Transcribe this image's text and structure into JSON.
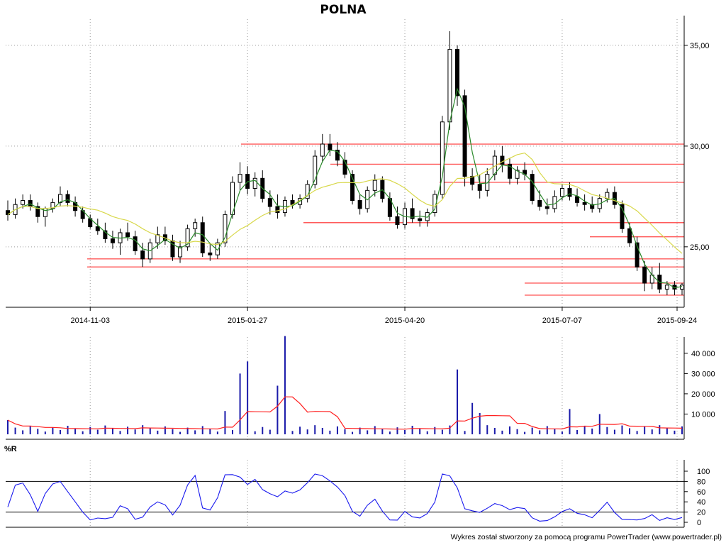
{
  "chart_data": [
    {
      "type": "candlestick",
      "panel": "price",
      "title": "POLNA",
      "x_tick_labels": [
        "2014-11-03",
        "2015-01-27",
        "2015-04-20",
        "2015-07-07",
        "2015-09-24"
      ],
      "y_tick_labels": [
        "25,00",
        "30,00",
        "35,00"
      ],
      "ylim": [
        22.0,
        36.3
      ],
      "grid": true,
      "ohlc_approx": [
        [
          26.8,
          27.3,
          26.3,
          26.6
        ],
        [
          26.6,
          27.4,
          26.4,
          27.1
        ],
        [
          27.1,
          27.6,
          26.9,
          27.3
        ],
        [
          27.3,
          27.6,
          26.8,
          27.0
        ],
        [
          27.0,
          27.2,
          26.2,
          26.5
        ],
        [
          26.5,
          27.0,
          26.0,
          26.9
        ],
        [
          26.9,
          27.4,
          26.7,
          27.2
        ],
        [
          27.2,
          28.0,
          27.0,
          27.6
        ],
        [
          27.6,
          27.8,
          27.0,
          27.2
        ],
        [
          27.2,
          27.5,
          26.5,
          26.8
        ],
        [
          26.8,
          27.0,
          26.2,
          26.4
        ],
        [
          26.4,
          26.6,
          25.9,
          26.0
        ],
        [
          26.0,
          26.4,
          25.6,
          25.8
        ],
        [
          25.8,
          26.2,
          25.2,
          25.4
        ],
        [
          25.4,
          25.8,
          24.9,
          25.2
        ],
        [
          25.2,
          25.9,
          24.6,
          25.7
        ],
        [
          25.7,
          26.2,
          25.3,
          25.5
        ],
        [
          25.5,
          25.8,
          24.6,
          24.8
        ],
        [
          24.8,
          25.2,
          24.0,
          24.4
        ],
        [
          24.4,
          25.4,
          24.2,
          25.2
        ],
        [
          25.2,
          26.0,
          24.9,
          25.6
        ],
        [
          25.6,
          26.0,
          25.1,
          25.3
        ],
        [
          25.3,
          25.6,
          24.3,
          24.5
        ],
        [
          24.5,
          25.3,
          24.2,
          25.0
        ],
        [
          25.0,
          26.1,
          24.8,
          25.9
        ],
        [
          25.9,
          26.4,
          25.5,
          26.2
        ],
        [
          26.2,
          26.5,
          24.5,
          24.7
        ],
        [
          24.7,
          25.2,
          24.3,
          24.6
        ],
        [
          24.6,
          25.4,
          24.4,
          25.2
        ],
        [
          25.2,
          26.8,
          25.0,
          26.6
        ],
        [
          26.6,
          28.5,
          26.4,
          28.2
        ],
        [
          28.2,
          29.2,
          27.8,
          28.6
        ],
        [
          28.6,
          29.0,
          27.6,
          27.9
        ],
        [
          27.9,
          28.7,
          27.5,
          28.4
        ],
        [
          28.4,
          28.8,
          27.2,
          27.4
        ],
        [
          27.4,
          27.8,
          26.6,
          27.0
        ],
        [
          27.0,
          27.6,
          26.4,
          26.7
        ],
        [
          26.7,
          27.5,
          26.5,
          27.3
        ],
        [
          27.3,
          27.6,
          26.9,
          27.1
        ],
        [
          27.1,
          27.6,
          26.9,
          27.4
        ],
        [
          27.4,
          28.3,
          27.2,
          28.1
        ],
        [
          28.1,
          29.8,
          27.9,
          29.5
        ],
        [
          29.5,
          30.6,
          29.2,
          30.1
        ],
        [
          30.1,
          30.6,
          29.5,
          29.8
        ],
        [
          29.8,
          30.2,
          29.0,
          29.3
        ],
        [
          29.3,
          29.7,
          28.4,
          28.6
        ],
        [
          28.6,
          28.8,
          27.1,
          27.3
        ],
        [
          27.3,
          27.6,
          26.6,
          26.9
        ],
        [
          26.9,
          28.0,
          26.7,
          27.8
        ],
        [
          27.8,
          28.6,
          27.5,
          28.3
        ],
        [
          28.3,
          28.5,
          27.2,
          27.4
        ],
        [
          27.4,
          27.7,
          26.3,
          26.5
        ],
        [
          26.5,
          27.0,
          25.9,
          26.1
        ],
        [
          26.1,
          27.2,
          25.9,
          26.9
        ],
        [
          26.9,
          27.4,
          26.2,
          26.4
        ],
        [
          26.4,
          26.8,
          26.0,
          26.3
        ],
        [
          26.3,
          26.9,
          26.0,
          26.7
        ],
        [
          26.7,
          27.8,
          26.5,
          27.6
        ],
        [
          27.6,
          31.5,
          27.4,
          31.2
        ],
        [
          31.2,
          35.7,
          30.8,
          34.8
        ],
        [
          34.8,
          35.0,
          32.0,
          32.5
        ],
        [
          32.5,
          32.8,
          28.0,
          28.5
        ],
        [
          28.5,
          28.9,
          27.8,
          28.1
        ],
        [
          28.1,
          28.6,
          27.4,
          27.8
        ],
        [
          27.8,
          28.9,
          27.5,
          28.6
        ],
        [
          28.6,
          29.8,
          28.3,
          29.5
        ],
        [
          29.5,
          30.0,
          28.7,
          29.1
        ],
        [
          29.1,
          29.4,
          28.1,
          28.4
        ],
        [
          28.4,
          29.0,
          28.1,
          28.8
        ],
        [
          28.8,
          29.2,
          28.3,
          28.6
        ],
        [
          28.6,
          28.8,
          27.1,
          27.3
        ],
        [
          27.3,
          27.8,
          26.8,
          27.0
        ],
        [
          27.0,
          27.4,
          26.6,
          26.9
        ],
        [
          26.9,
          27.8,
          26.7,
          27.5
        ],
        [
          27.5,
          28.1,
          27.3,
          27.9
        ],
        [
          27.9,
          28.2,
          27.3,
          27.5
        ],
        [
          27.5,
          27.9,
          27.0,
          27.2
        ],
        [
          27.2,
          27.6,
          26.8,
          27.1
        ],
        [
          27.1,
          27.5,
          26.7,
          26.9
        ],
        [
          26.9,
          27.6,
          26.7,
          27.4
        ],
        [
          27.4,
          27.9,
          27.2,
          27.7
        ],
        [
          27.7,
          28.0,
          26.9,
          27.1
        ],
        [
          27.1,
          27.3,
          25.7,
          25.9
        ],
        [
          25.9,
          26.2,
          25.0,
          25.2
        ],
        [
          25.2,
          25.5,
          23.8,
          24.0
        ],
        [
          24.0,
          24.3,
          22.8,
          23.2
        ],
        [
          23.2,
          24.0,
          22.9,
          23.6
        ],
        [
          23.6,
          24.2,
          22.7,
          22.9
        ],
        [
          22.9,
          23.3,
          22.6,
          23.1
        ],
        [
          23.1,
          23.3,
          22.6,
          22.9
        ],
        [
          22.9,
          23.2,
          22.6,
          23.1
        ]
      ],
      "moving_averages": [
        {
          "color": "#2a8a2a",
          "label": "short MA"
        },
        {
          "color": "#d8d84a",
          "label": "long MA"
        }
      ],
      "horizontal_levels_approx": [
        30.1,
        29.1,
        28.2,
        26.2,
        25.5,
        24.4,
        24.0,
        23.2,
        22.6
      ],
      "level_color": "#ff5a5a"
    },
    {
      "type": "bar",
      "panel": "volume",
      "y_tick_labels": [
        "10 000",
        "20 000",
        "30 000",
        "40 000"
      ],
      "ylim": [
        0,
        48000
      ],
      "bar_color": "#1a1aaa",
      "line_color": "#ff2020",
      "spikes_approx": [
        {
          "idx": 0,
          "value": 7000
        },
        {
          "idx": 29,
          "value": 11500
        },
        {
          "idx": 31,
          "value": 30000
        },
        {
          "idx": 32,
          "value": 36000
        },
        {
          "idx": 36,
          "value": 24000
        },
        {
          "idx": 37,
          "value": 48500
        },
        {
          "idx": 60,
          "value": 32000
        },
        {
          "idx": 62,
          "value": 15500
        },
        {
          "idx": 63,
          "value": 10500
        },
        {
          "idx": 75,
          "value": 12500
        },
        {
          "idx": 79,
          "value": 10000
        }
      ]
    },
    {
      "type": "line",
      "panel": "oscillator",
      "title": "%R",
      "y_tick_labels": [
        "0",
        "20",
        "40",
        "60",
        "80",
        "100"
      ],
      "ylim": [
        0,
        100
      ],
      "reference_lines": [
        20,
        80
      ],
      "line_color": "#1a1aee"
    }
  ],
  "footer": {
    "credit": "Wykres został stworzony za pomocą programu PowerTrader (www.powertrader.pl)"
  }
}
